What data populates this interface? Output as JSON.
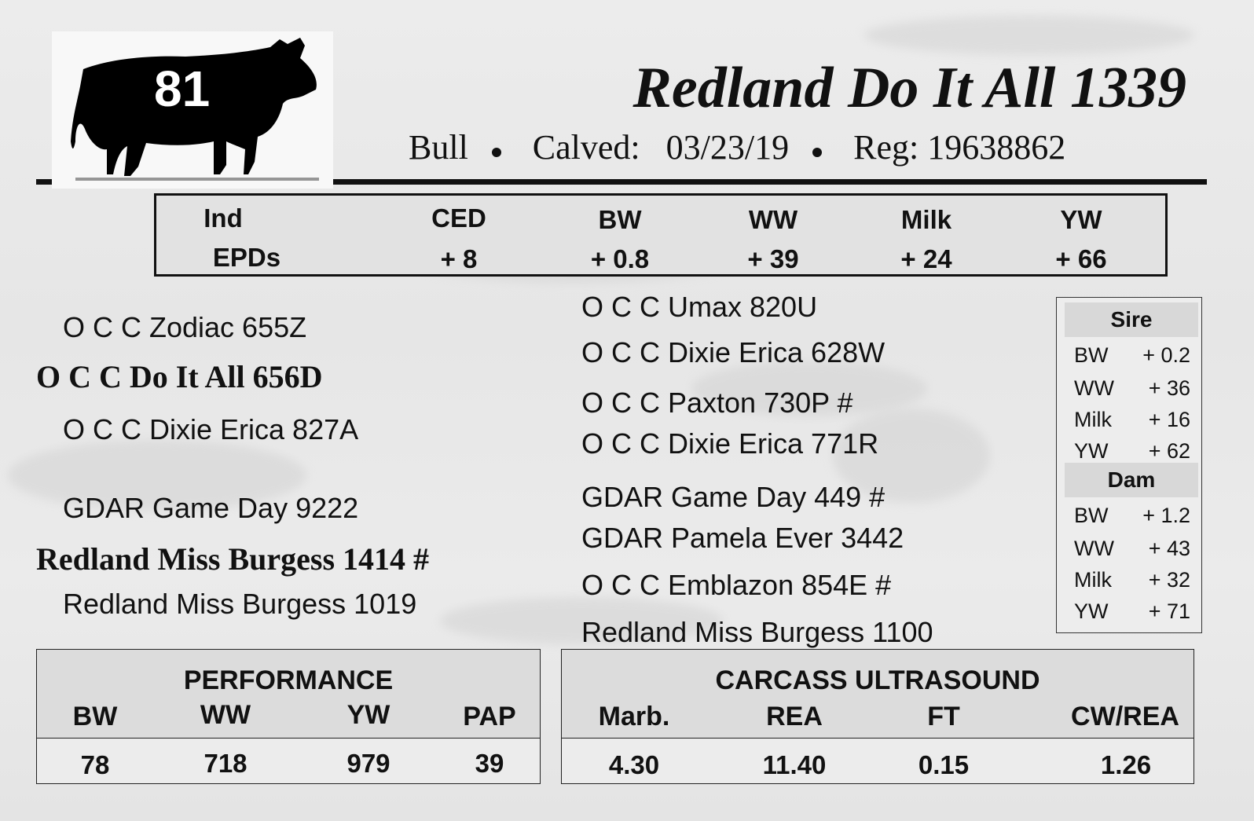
{
  "lot": {
    "number": "81",
    "icon": "bull-silhouette-icon"
  },
  "animal": {
    "name": "Redland Do It All 1339",
    "sex": "Bull",
    "calved_label": "Calved:",
    "calved_date": "03/23/19",
    "reg_label": "Reg:",
    "reg_number": "19638862"
  },
  "epds": {
    "label_1": "Ind",
    "label_2": "EPDs",
    "columns": [
      {
        "name": "CED",
        "value": "+ 8"
      },
      {
        "name": "BW",
        "value": "+ 0.8"
      },
      {
        "name": "WW",
        "value": "+ 39"
      },
      {
        "name": "Milk",
        "value": "+ 24"
      },
      {
        "name": "YW",
        "value": "+ 66"
      }
    ]
  },
  "pedigree": {
    "sire": "O C C Do It All 656D",
    "sire_sire": "O C C Zodiac 655Z",
    "sire_dam": "O C C Dixie Erica 827A",
    "dam": "Redland Miss Burgess 1414 #",
    "dam_sire": "GDAR Game Day 9222",
    "dam_dam": "Redland Miss Burgess 1019",
    "ggp": [
      "O C C Umax 820U",
      "O C C Dixie Erica 628W",
      "O C C Paxton 730P #",
      "O C C Dixie Erica 771R",
      "GDAR Game Day 449 #",
      "GDAR Pamela Ever 3442",
      "O C C Emblazon 854E #",
      "Redland  Miss Burgess 1100"
    ]
  },
  "sire_epds": {
    "heading": "Sire",
    "rows": [
      {
        "label": "BW",
        "value": "+ 0.2"
      },
      {
        "label": "WW",
        "value": "+ 36"
      },
      {
        "label": "Milk",
        "value": "+ 16"
      },
      {
        "label": "YW",
        "value": "+ 62"
      }
    ]
  },
  "dam_epds": {
    "heading": "Dam",
    "rows": [
      {
        "label": "BW",
        "value": "+ 1.2"
      },
      {
        "label": "WW",
        "value": "+ 43"
      },
      {
        "label": "Milk",
        "value": "+ 32"
      },
      {
        "label": "YW",
        "value": "+ 71"
      }
    ]
  },
  "performance": {
    "title": "PERFORMANCE",
    "columns": [
      "BW",
      "WW",
      "YW",
      "PAP"
    ],
    "values": [
      "78",
      "718",
      "979",
      "39"
    ]
  },
  "carcass": {
    "title": "CARCASS ULTRASOUND",
    "columns": [
      "Marb.",
      "REA",
      "FT",
      "CW/REA"
    ],
    "values": [
      "4.30",
      "11.40",
      "0.15",
      "1.26"
    ]
  }
}
